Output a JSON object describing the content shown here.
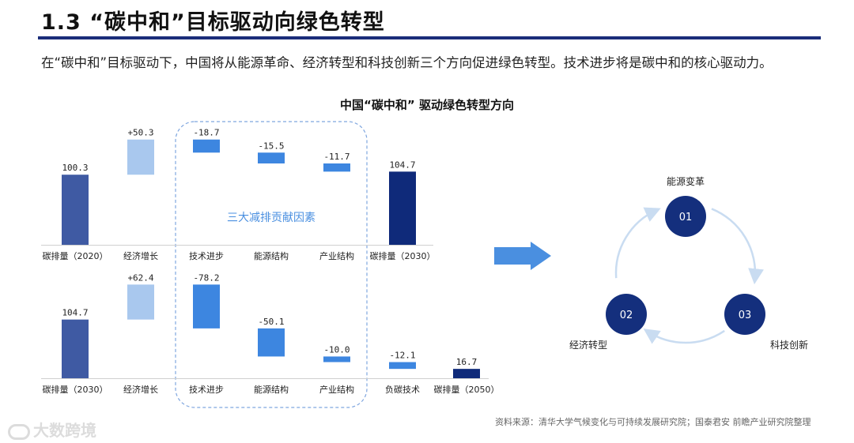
{
  "header": {
    "title": "1.3 “碳中和”目标驱动向绿色转型",
    "intro": "在“碳中和”目标驱动下，中国将从能源革命、经济转型和科技创新三个方向促进绿色转型。技术进步将是碳中和的核心驱动力。",
    "chart_title": "中国“碳中和” 驱动绿色转型方向"
  },
  "chart_data": [
    {
      "type": "bar",
      "subtype": "waterfall",
      "categories": [
        "碳排量（2020）",
        "经济增长",
        "技术进步",
        "能源结构",
        "产业结构",
        "碳排量（2030）"
      ],
      "values": [
        100.3,
        50.3,
        -18.7,
        -15.5,
        -11.7,
        104.7
      ],
      "labels": [
        "100.3",
        "+50.3",
        "-18.7",
        "-15.5",
        "-11.7",
        "104.7"
      ],
      "kinds": [
        "total",
        "increase",
        "decrease",
        "decrease",
        "decrease",
        "total"
      ]
    },
    {
      "type": "bar",
      "subtype": "waterfall",
      "categories": [
        "碳排量（2030）",
        "经济增长",
        "技术进步",
        "能源结构",
        "产业结构",
        "负碳技术",
        "碳排量（2050）"
      ],
      "values": [
        104.7,
        62.4,
        -78.2,
        -50.1,
        -10.0,
        -12.1,
        16.7
      ],
      "labels": [
        "104.7",
        "+62.4",
        "-78.2",
        "-50.1",
        "-10.0",
        "-12.1",
        "16.7"
      ],
      "kinds": [
        "total",
        "increase",
        "decrease",
        "decrease",
        "decrease",
        "decrease",
        "total"
      ]
    }
  ],
  "group_label": "三大减排贡献因素",
  "colors": {
    "total_start": "#3f5aa3",
    "total_end": "#0f2a7a",
    "increase": "#a9c8ee",
    "decrease": "#3d86e0",
    "circle": "#142f7d",
    "cycle_arrow": "#c9dcf1",
    "big_arrow": "#4a8fe0",
    "dashed": "#7fa6df"
  },
  "cycle": {
    "nodes": [
      {
        "num": "01",
        "label": "能源变革"
      },
      {
        "num": "02",
        "label": "经济转型"
      },
      {
        "num": "03",
        "label": "科技创新"
      }
    ]
  },
  "source": "资料来源：清华大学气候变化与可持续发展研究院；国泰君安  前瞻产业研究院整理",
  "watermark": "大数跨境"
}
